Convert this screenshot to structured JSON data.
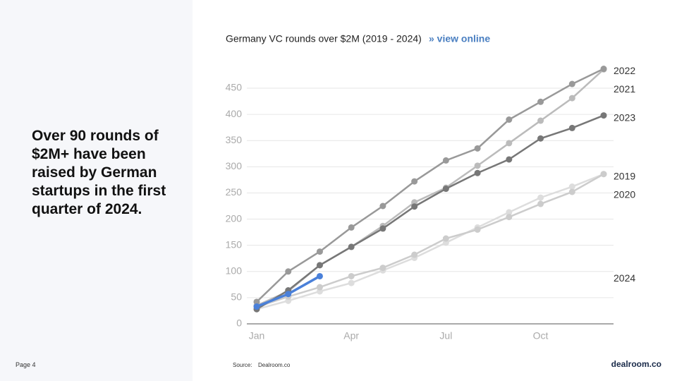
{
  "headline": "Over 90 rounds of $2M+ have been raised by German startups in the first quarter of 2024.",
  "page": "Page 4",
  "source_label": "Source:",
  "source": "Dealroom.co",
  "logo": "dealroom.co",
  "chart_data": {
    "type": "line",
    "title": "Germany VC rounds over $2M (2019 - 2024)",
    "link": "» view online",
    "categories": [
      "Jan",
      null,
      null,
      "Apr",
      null,
      null,
      "Jul",
      null,
      null,
      "Oct",
      null,
      null
    ],
    "ylim": [
      0,
      450
    ],
    "yticks": [
      0,
      50,
      100,
      150,
      200,
      250,
      300,
      350,
      400,
      450
    ],
    "grid": true,
    "series": [
      {
        "name": "2019",
        "color": "#dddddd",
        "values": [
          28,
          44,
          62,
          78,
          102,
          126,
          155,
          184,
          213,
          241,
          262,
          286
        ]
      },
      {
        "name": "2020",
        "color": "#cccccc",
        "values": [
          32,
          52,
          70,
          91,
          107,
          132,
          163,
          180,
          204,
          229,
          252,
          286
        ]
      },
      {
        "name": "2021",
        "color": "#bbbbbb",
        "values": [
          35,
          62,
          112,
          147,
          187,
          232,
          260,
          302,
          345,
          388,
          431,
          486
        ]
      },
      {
        "name": "2022",
        "color": "#999999",
        "values": [
          42,
          100,
          138,
          184,
          225,
          272,
          312,
          335,
          390,
          424,
          458,
          487
        ]
      },
      {
        "name": "2023",
        "color": "#777777",
        "values": [
          28,
          64,
          112,
          147,
          182,
          224,
          258,
          288,
          314,
          354,
          374,
          398
        ]
      },
      {
        "name": "2024",
        "color": "#4a80d9",
        "values": [
          33,
          57,
          91,
          null,
          null,
          null,
          null,
          null,
          null,
          null,
          null,
          null
        ]
      }
    ]
  }
}
